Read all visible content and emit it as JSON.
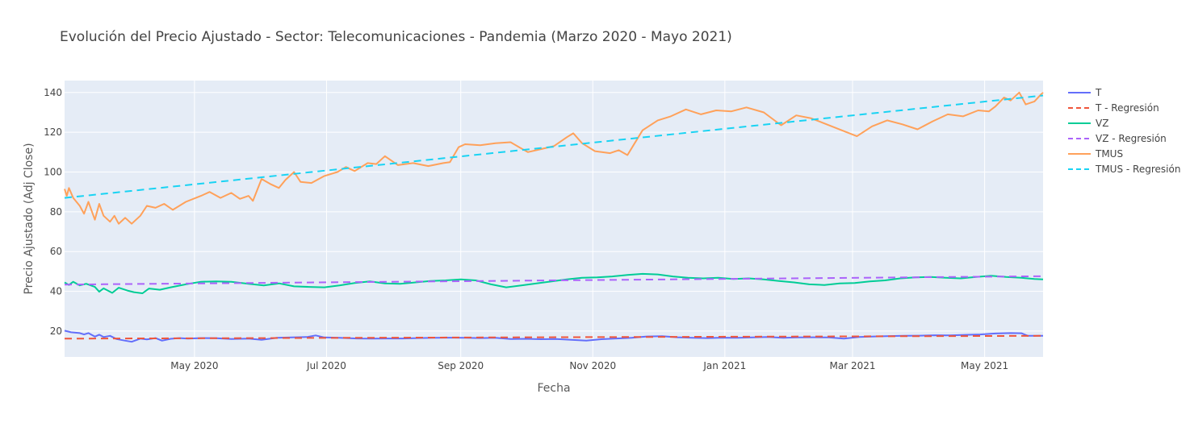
{
  "chart_data": {
    "type": "line",
    "title": "Evolución del Precio Ajustado - Sector: Telecomunicaciones - Pandemia (Marzo 2020 - Mayo 2021)",
    "xlabel": "Fecha",
    "ylabel": "Precio Ajustado (Adj Close)",
    "xlim": [
      "2020-03-02",
      "2021-05-28"
    ],
    "ylim": [
      7,
      146
    ],
    "x_ticks": [
      {
        "date": "2020-05-01",
        "label": "May 2020"
      },
      {
        "date": "2020-07-01",
        "label": "Jul 2020"
      },
      {
        "date": "2020-09-01",
        "label": "Sep 2020"
      },
      {
        "date": "2020-11-01",
        "label": "Nov 2020"
      },
      {
        "date": "2021-01-01",
        "label": "Jan 2021"
      },
      {
        "date": "2021-03-01",
        "label": "Mar 2021"
      },
      {
        "date": "2021-05-01",
        "label": "May 2021"
      }
    ],
    "y_ticks": [
      20,
      40,
      60,
      80,
      100,
      120,
      140
    ],
    "grid": true,
    "legend_position": "right",
    "series": [
      {
        "name": "T",
        "color": "#636efa",
        "dash": "solid",
        "points": [
          [
            "2020-03-02",
            20.2
          ],
          [
            "2020-03-05",
            19.4
          ],
          [
            "2020-03-09",
            19.0
          ],
          [
            "2020-03-11",
            18.3
          ],
          [
            "2020-03-13",
            19.0
          ],
          [
            "2020-03-16",
            17.2
          ],
          [
            "2020-03-18",
            18.2
          ],
          [
            "2020-03-20",
            17.0
          ],
          [
            "2020-03-23",
            17.6
          ],
          [
            "2020-03-26",
            16.0
          ],
          [
            "2020-03-30",
            15.2
          ],
          [
            "2020-04-02",
            14.6
          ],
          [
            "2020-04-06",
            16.2
          ],
          [
            "2020-04-09",
            15.8
          ],
          [
            "2020-04-13",
            16.5
          ],
          [
            "2020-04-16",
            15.2
          ],
          [
            "2020-04-20",
            16.1
          ],
          [
            "2020-04-24",
            16.5
          ],
          [
            "2020-04-28",
            16.2
          ],
          [
            "2020-05-04",
            16.5
          ],
          [
            "2020-05-11",
            16.4
          ],
          [
            "2020-05-18",
            16.0
          ],
          [
            "2020-05-26",
            16.2
          ],
          [
            "2020-06-01",
            15.6
          ],
          [
            "2020-06-08",
            16.6
          ],
          [
            "2020-06-15",
            16.8
          ],
          [
            "2020-06-22",
            17.0
          ],
          [
            "2020-06-26",
            17.8
          ],
          [
            "2020-06-30",
            16.8
          ],
          [
            "2020-07-07",
            16.6
          ],
          [
            "2020-07-15",
            16.3
          ],
          [
            "2020-07-22",
            16.2
          ],
          [
            "2020-07-29",
            16.3
          ],
          [
            "2020-08-05",
            16.3
          ],
          [
            "2020-08-12",
            16.5
          ],
          [
            "2020-08-20",
            16.6
          ],
          [
            "2020-08-27",
            16.7
          ],
          [
            "2020-09-03",
            16.6
          ],
          [
            "2020-09-10",
            16.5
          ],
          [
            "2020-09-17",
            16.6
          ],
          [
            "2020-09-24",
            16.0
          ],
          [
            "2020-10-01",
            16.1
          ],
          [
            "2020-10-08",
            15.9
          ],
          [
            "2020-10-15",
            16.0
          ],
          [
            "2020-10-22",
            15.6
          ],
          [
            "2020-10-29",
            15.2
          ],
          [
            "2020-11-05",
            15.9
          ],
          [
            "2020-11-12",
            16.3
          ],
          [
            "2020-11-19",
            16.6
          ],
          [
            "2020-11-26",
            17.3
          ],
          [
            "2020-12-03",
            17.4
          ],
          [
            "2020-12-10",
            16.9
          ],
          [
            "2020-12-17",
            16.6
          ],
          [
            "2020-12-24",
            16.5
          ],
          [
            "2020-12-31",
            16.7
          ],
          [
            "2021-01-07",
            16.6
          ],
          [
            "2021-01-14",
            16.8
          ],
          [
            "2021-01-21",
            17.0
          ],
          [
            "2021-01-28",
            16.6
          ],
          [
            "2021-02-04",
            16.8
          ],
          [
            "2021-02-11",
            16.9
          ],
          [
            "2021-02-18",
            16.8
          ],
          [
            "2021-02-25",
            16.2
          ],
          [
            "2021-03-04",
            17.0
          ],
          [
            "2021-03-11",
            17.3
          ],
          [
            "2021-03-18",
            17.5
          ],
          [
            "2021-03-25",
            17.6
          ],
          [
            "2021-04-01",
            17.7
          ],
          [
            "2021-04-08",
            17.9
          ],
          [
            "2021-04-15",
            17.8
          ],
          [
            "2021-04-22",
            18.1
          ],
          [
            "2021-04-29",
            18.3
          ],
          [
            "2021-05-06",
            18.8
          ],
          [
            "2021-05-13",
            19.0
          ],
          [
            "2021-05-18",
            18.9
          ],
          [
            "2021-05-21",
            17.6
          ],
          [
            "2021-05-28",
            17.6
          ]
        ]
      },
      {
        "name": "T - Regresión",
        "color": "#ef553b",
        "dash": "dashed",
        "points": [
          [
            "2020-03-02",
            16.2
          ],
          [
            "2021-05-28",
            17.6
          ]
        ]
      },
      {
        "name": "VZ",
        "color": "#00cc96",
        "dash": "solid",
        "points": [
          [
            "2020-03-02",
            44.5
          ],
          [
            "2020-03-04",
            43.2
          ],
          [
            "2020-03-06",
            44.8
          ],
          [
            "2020-03-09",
            43.0
          ],
          [
            "2020-03-12",
            43.8
          ],
          [
            "2020-03-16",
            42.2
          ],
          [
            "2020-03-18",
            39.8
          ],
          [
            "2020-03-20",
            41.5
          ],
          [
            "2020-03-24",
            39.2
          ],
          [
            "2020-03-27",
            41.8
          ],
          [
            "2020-03-31",
            40.4
          ],
          [
            "2020-04-03",
            39.6
          ],
          [
            "2020-04-07",
            39.0
          ],
          [
            "2020-04-10",
            41.4
          ],
          [
            "2020-04-15",
            40.8
          ],
          [
            "2020-04-20",
            42.0
          ],
          [
            "2020-04-27",
            43.5
          ],
          [
            "2020-05-04",
            44.8
          ],
          [
            "2020-05-11",
            45.0
          ],
          [
            "2020-05-18",
            44.8
          ],
          [
            "2020-05-26",
            43.8
          ],
          [
            "2020-06-02",
            43.0
          ],
          [
            "2020-06-09",
            44.0
          ],
          [
            "2020-06-16",
            42.5
          ],
          [
            "2020-06-23",
            42.2
          ],
          [
            "2020-06-30",
            42.0
          ],
          [
            "2020-07-07",
            43.0
          ],
          [
            "2020-07-14",
            44.2
          ],
          [
            "2020-07-21",
            45.0
          ],
          [
            "2020-07-28",
            44.0
          ],
          [
            "2020-08-04",
            43.8
          ],
          [
            "2020-08-11",
            44.5
          ],
          [
            "2020-08-18",
            45.2
          ],
          [
            "2020-08-25",
            45.5
          ],
          [
            "2020-09-01",
            46.0
          ],
          [
            "2020-09-08",
            45.5
          ],
          [
            "2020-09-15",
            43.5
          ],
          [
            "2020-09-22",
            42.0
          ],
          [
            "2020-09-29",
            43.0
          ],
          [
            "2020-10-06",
            44.0
          ],
          [
            "2020-10-13",
            45.0
          ],
          [
            "2020-10-20",
            46.0
          ],
          [
            "2020-10-27",
            46.8
          ],
          [
            "2020-11-03",
            47.0
          ],
          [
            "2020-11-10",
            47.5
          ],
          [
            "2020-11-17",
            48.2
          ],
          [
            "2020-11-24",
            48.8
          ],
          [
            "2020-12-01",
            48.5
          ],
          [
            "2020-12-08",
            47.5
          ],
          [
            "2020-12-15",
            46.8
          ],
          [
            "2020-12-22",
            46.5
          ],
          [
            "2020-12-29",
            46.8
          ],
          [
            "2021-01-05",
            46.2
          ],
          [
            "2021-01-12",
            46.5
          ],
          [
            "2021-01-19",
            46.0
          ],
          [
            "2021-01-26",
            45.2
          ],
          [
            "2021-02-02",
            44.5
          ],
          [
            "2021-02-09",
            43.5
          ],
          [
            "2021-02-16",
            43.2
          ],
          [
            "2021-02-23",
            44.0
          ],
          [
            "2021-03-02",
            44.2
          ],
          [
            "2021-03-09",
            45.0
          ],
          [
            "2021-03-16",
            45.5
          ],
          [
            "2021-03-23",
            46.5
          ],
          [
            "2021-03-30",
            47.0
          ],
          [
            "2021-04-06",
            47.2
          ],
          [
            "2021-04-13",
            46.8
          ],
          [
            "2021-04-20",
            46.5
          ],
          [
            "2021-04-27",
            47.2
          ],
          [
            "2021-05-04",
            47.8
          ],
          [
            "2021-05-11",
            47.2
          ],
          [
            "2021-05-18",
            46.8
          ],
          [
            "2021-05-24",
            46.2
          ],
          [
            "2021-05-28",
            46.0
          ]
        ]
      },
      {
        "name": "VZ - Regresión",
        "color": "#ab63fa",
        "dash": "dashed",
        "points": [
          [
            "2020-03-02",
            43.4
          ],
          [
            "2021-05-28",
            47.6
          ]
        ]
      },
      {
        "name": "TMUS",
        "color": "#ffa15a",
        "dash": "solid",
        "points": [
          [
            "2020-03-02",
            91.5
          ],
          [
            "2020-03-03",
            88.0
          ],
          [
            "2020-03-04",
            92.0
          ],
          [
            "2020-03-06",
            87.0
          ],
          [
            "2020-03-09",
            83.0
          ],
          [
            "2020-03-11",
            79.0
          ],
          [
            "2020-03-13",
            85.0
          ],
          [
            "2020-03-16",
            76.0
          ],
          [
            "2020-03-18",
            84.0
          ],
          [
            "2020-03-20",
            78.0
          ],
          [
            "2020-03-23",
            75.0
          ],
          [
            "2020-03-25",
            78.0
          ],
          [
            "2020-03-27",
            74.0
          ],
          [
            "2020-03-30",
            77.0
          ],
          [
            "2020-04-02",
            74.0
          ],
          [
            "2020-04-06",
            78.0
          ],
          [
            "2020-04-09",
            83.0
          ],
          [
            "2020-04-13",
            82.0
          ],
          [
            "2020-04-17",
            84.0
          ],
          [
            "2020-04-21",
            81.0
          ],
          [
            "2020-04-27",
            85.0
          ],
          [
            "2020-05-04",
            88.0
          ],
          [
            "2020-05-08",
            90.0
          ],
          [
            "2020-05-13",
            87.0
          ],
          [
            "2020-05-18",
            89.5
          ],
          [
            "2020-05-22",
            86.5
          ],
          [
            "2020-05-26",
            88.0
          ],
          [
            "2020-05-28",
            85.5
          ],
          [
            "2020-06-01",
            96.5
          ],
          [
            "2020-06-05",
            94.0
          ],
          [
            "2020-06-09",
            92.0
          ],
          [
            "2020-06-12",
            96.0
          ],
          [
            "2020-06-16",
            100.0
          ],
          [
            "2020-06-19",
            95.0
          ],
          [
            "2020-06-24",
            94.5
          ],
          [
            "2020-06-30",
            98.0
          ],
          [
            "2020-07-06",
            100.0
          ],
          [
            "2020-07-10",
            102.5
          ],
          [
            "2020-07-14",
            100.5
          ],
          [
            "2020-07-20",
            104.5
          ],
          [
            "2020-07-24",
            104.0
          ],
          [
            "2020-07-28",
            108.0
          ],
          [
            "2020-08-03",
            103.5
          ],
          [
            "2020-08-10",
            104.5
          ],
          [
            "2020-08-17",
            103.0
          ],
          [
            "2020-08-24",
            104.5
          ],
          [
            "2020-08-27",
            105.0
          ],
          [
            "2020-08-31",
            112.5
          ],
          [
            "2020-09-03",
            114.0
          ],
          [
            "2020-09-10",
            113.5
          ],
          [
            "2020-09-17",
            114.5
          ],
          [
            "2020-09-24",
            115.0
          ],
          [
            "2020-09-28",
            112.5
          ],
          [
            "2020-10-02",
            110.0
          ],
          [
            "2020-10-08",
            111.5
          ],
          [
            "2020-10-14",
            113.0
          ],
          [
            "2020-10-20",
            117.5
          ],
          [
            "2020-10-23",
            119.5
          ],
          [
            "2020-10-27",
            114.5
          ],
          [
            "2020-11-02",
            110.5
          ],
          [
            "2020-11-09",
            109.5
          ],
          [
            "2020-11-13",
            111.0
          ],
          [
            "2020-11-17",
            108.5
          ],
          [
            "2020-11-24",
            121.0
          ],
          [
            "2020-12-01",
            126.0
          ],
          [
            "2020-12-07",
            128.0
          ],
          [
            "2020-12-14",
            131.5
          ],
          [
            "2020-12-21",
            129.0
          ],
          [
            "2020-12-28",
            131.0
          ],
          [
            "2021-01-04",
            130.5
          ],
          [
            "2021-01-11",
            132.5
          ],
          [
            "2021-01-19",
            130.0
          ],
          [
            "2021-01-27",
            123.5
          ],
          [
            "2021-02-03",
            128.5
          ],
          [
            "2021-02-10",
            127.0
          ],
          [
            "2021-02-17",
            124.0
          ],
          [
            "2021-02-24",
            121.0
          ],
          [
            "2021-03-03",
            118.0
          ],
          [
            "2021-03-10",
            123.0
          ],
          [
            "2021-03-17",
            126.0
          ],
          [
            "2021-03-24",
            124.0
          ],
          [
            "2021-03-31",
            121.5
          ],
          [
            "2021-04-07",
            125.5
          ],
          [
            "2021-04-14",
            129.0
          ],
          [
            "2021-04-21",
            128.0
          ],
          [
            "2021-04-28",
            131.0
          ],
          [
            "2021-05-03",
            130.5
          ],
          [
            "2021-05-06",
            133.0
          ],
          [
            "2021-05-10",
            137.5
          ],
          [
            "2021-05-13",
            136.0
          ],
          [
            "2021-05-17",
            140.0
          ],
          [
            "2021-05-20",
            134.0
          ],
          [
            "2021-05-24",
            135.5
          ],
          [
            "2021-05-27",
            139.0
          ],
          [
            "2021-05-28",
            140.0
          ]
        ]
      },
      {
        "name": "TMUS - Regresión",
        "color": "#19d3f3",
        "dash": "dashed",
        "points": [
          [
            "2020-03-02",
            87.0
          ],
          [
            "2021-05-28",
            138.5
          ]
        ]
      }
    ]
  }
}
